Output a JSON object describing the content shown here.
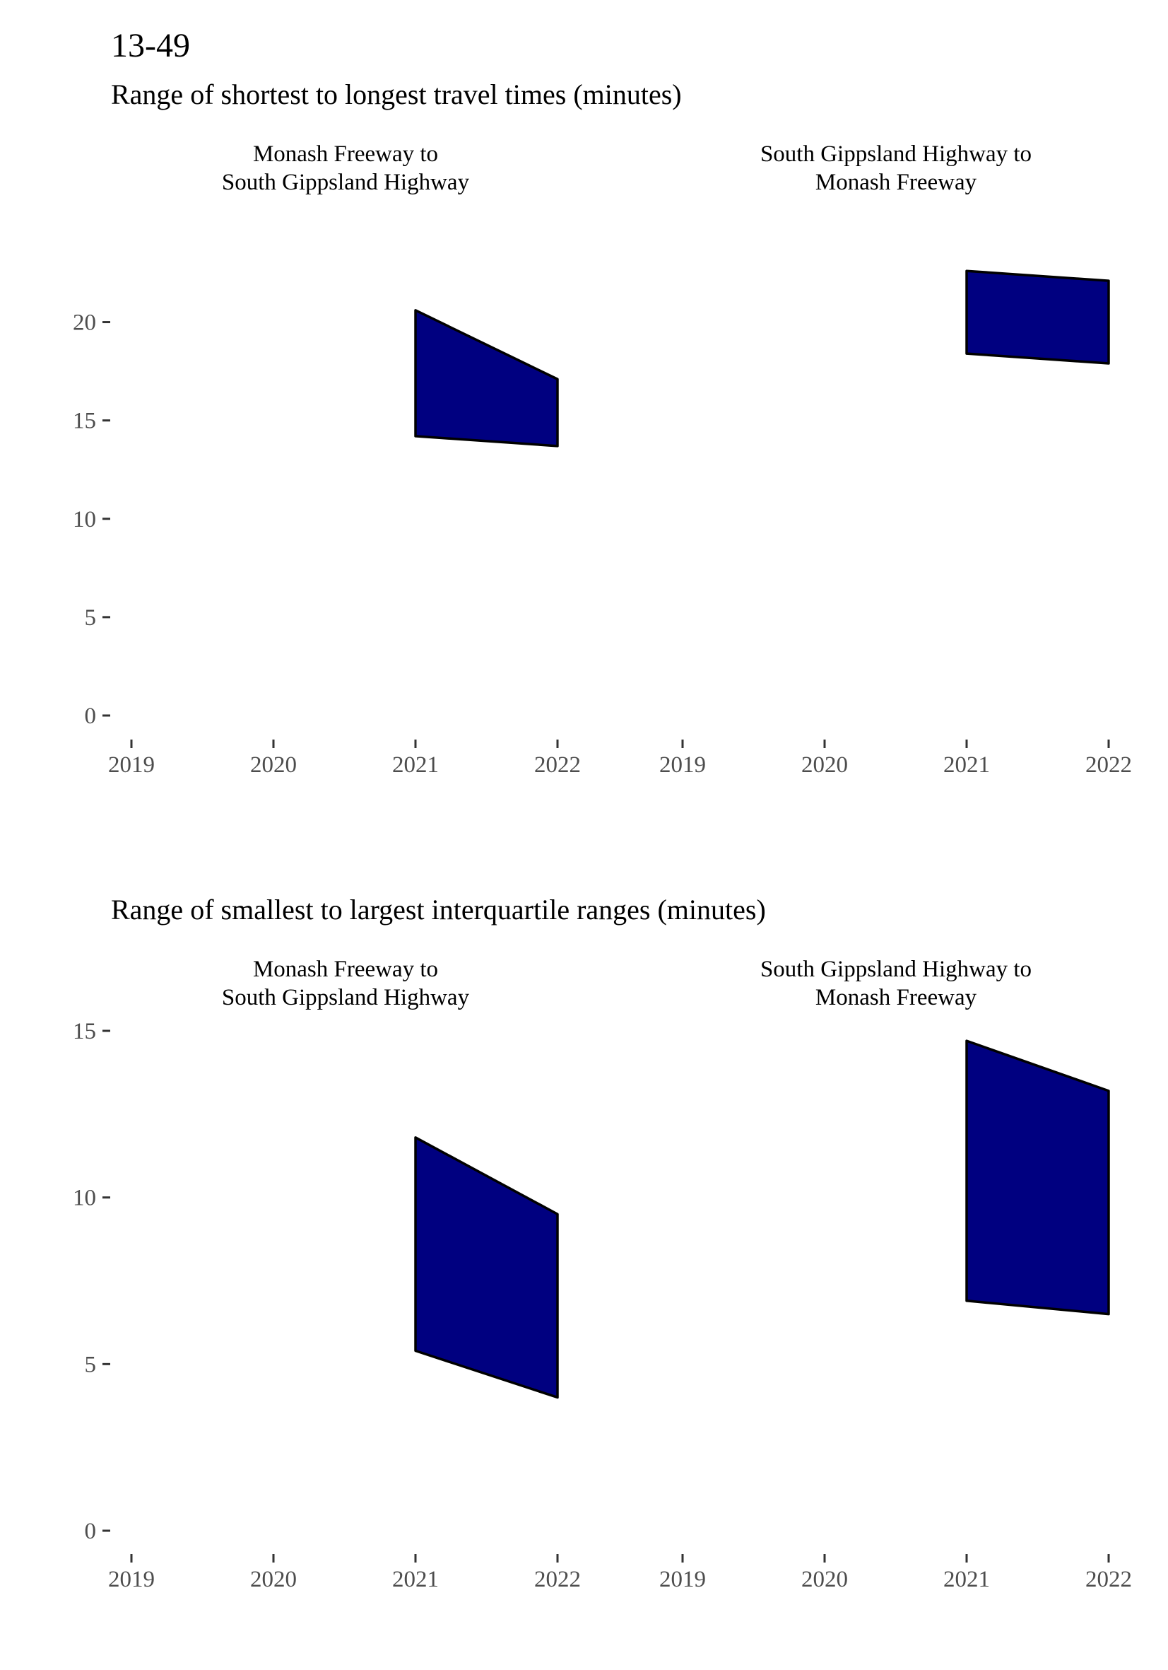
{
  "page_title": "13-49",
  "colors": {
    "band_fill": "#000080",
    "band_edge": "#000000",
    "tick_text": "#4d4d4d"
  },
  "chart_data": [
    {
      "type": "area",
      "title": "Range of shortest to longest travel times (minutes)",
      "xlabel": "",
      "ylabel": "",
      "x_ticks": [
        "2019",
        "2020",
        "2021",
        "2022"
      ],
      "y_ticks": [
        "0",
        "5",
        "10",
        "15",
        "20"
      ],
      "ylim": [
        0,
        22.5
      ],
      "xlim": [
        2019,
        2022
      ],
      "grid": false,
      "panels": [
        {
          "label": [
            "Monash Freeway to",
            "South Gippsland Highway"
          ],
          "x": [
            2021,
            2022
          ],
          "lower": [
            14.2,
            13.7
          ],
          "upper": [
            20.6,
            17.1
          ]
        },
        {
          "label": [
            "South Gippsland Highway to",
            "Monash Freeway"
          ],
          "x": [
            2021,
            2022
          ],
          "lower": [
            18.4,
            17.9
          ],
          "upper": [
            22.6,
            22.1
          ]
        }
      ]
    },
    {
      "type": "area",
      "title": "Range of smallest to largest interquartile ranges (minutes)",
      "xlabel": "",
      "ylabel": "",
      "x_ticks": [
        "2019",
        "2020",
        "2021",
        "2022"
      ],
      "y_ticks": [
        "0",
        "5",
        "10",
        "15"
      ],
      "ylim": [
        0,
        15
      ],
      "xlim": [
        2019,
        2022
      ],
      "grid": false,
      "panels": [
        {
          "label": [
            "Monash Freeway to",
            "South Gippsland Highway"
          ],
          "x": [
            2021,
            2022
          ],
          "lower": [
            5.4,
            4.0
          ],
          "upper": [
            11.8,
            9.5
          ]
        },
        {
          "label": [
            "South Gippsland Highway to",
            "Monash Freeway"
          ],
          "x": [
            2021,
            2022
          ],
          "lower": [
            6.9,
            6.5
          ],
          "upper": [
            14.7,
            13.2
          ]
        }
      ]
    }
  ]
}
